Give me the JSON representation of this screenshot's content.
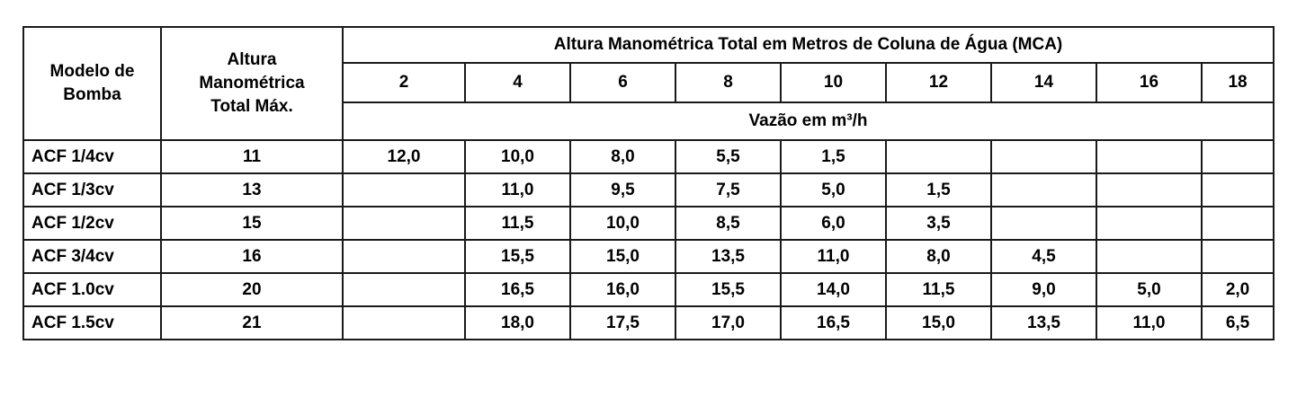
{
  "table": {
    "header": {
      "model_line1": "Modelo de",
      "model_line2": "Bomba",
      "maxhead_line1": "Altura",
      "maxhead_line2": "Manométrica",
      "maxhead_line3": "Total Máx.",
      "group_title": "Altura Manométrica Total em Metros de Coluna de Água (MCA)",
      "head_values": [
        "2",
        "4",
        "6",
        "8",
        "10",
        "12",
        "14",
        "16",
        "18"
      ],
      "unit_label": "Vazão em m³/h"
    },
    "rows": [
      {
        "model": "ACF 1/4cv",
        "max": "11",
        "cells": [
          "12,0",
          "10,0",
          "8,0",
          "5,5",
          "1,5",
          "",
          "",
          "",
          ""
        ]
      },
      {
        "model": "ACF 1/3cv",
        "max": "13",
        "cells": [
          "",
          "11,0",
          "9,5",
          "7,5",
          "5,0",
          "1,5",
          "",
          "",
          ""
        ]
      },
      {
        "model": "ACF 1/2cv",
        "max": "15",
        "cells": [
          "",
          "11,5",
          "10,0",
          "8,5",
          "6,0",
          "3,5",
          "",
          "",
          ""
        ]
      },
      {
        "model": "ACF 3/4cv",
        "max": "16",
        "cells": [
          "",
          "15,5",
          "15,0",
          "13,5",
          "11,0",
          "8,0",
          "4,5",
          "",
          ""
        ]
      },
      {
        "model": "ACF 1.0cv",
        "max": "20",
        "cells": [
          "",
          "16,5",
          "16,0",
          "15,5",
          "14,0",
          "11,5",
          "9,0",
          "5,0",
          "2,0"
        ]
      },
      {
        "model": "ACF 1.5cv",
        "max": "21",
        "cells": [
          "",
          "18,0",
          "17,5",
          "17,0",
          "16,5",
          "15,0",
          "13,5",
          "11,0",
          "6,5"
        ]
      }
    ]
  }
}
